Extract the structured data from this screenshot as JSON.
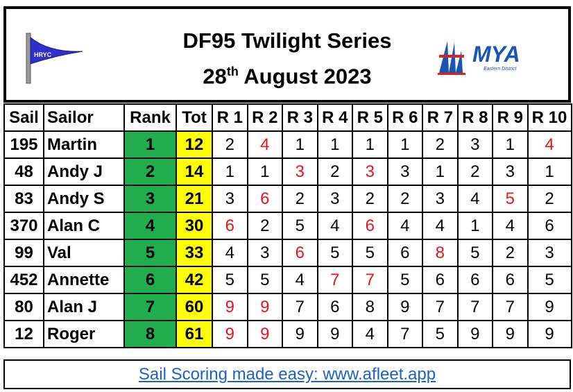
{
  "header": {
    "title_line1": "DF95 Twilight Series",
    "date_day": "28",
    "date_suffix": "th",
    "date_rest": " August 2023",
    "club_logo": "HRYC",
    "partner_logo": "MYA",
    "partner_sub": "Eastern District"
  },
  "columns": [
    "Sail",
    "Sailor",
    "Rank",
    "Tot",
    "R 1",
    "R 2",
    "R 3",
    "R 4",
    "R 5",
    "R 6",
    "R 7",
    "R 8",
    "R 9",
    "R 10"
  ],
  "rows": [
    {
      "sail": "195",
      "sailor": "Martin",
      "rank": "1",
      "tot": "12",
      "races": [
        "2",
        "4",
        "1",
        "1",
        "1",
        "1",
        "2",
        "3",
        "1",
        "4"
      ],
      "discards": [
        1,
        9
      ]
    },
    {
      "sail": "48",
      "sailor": "Andy J",
      "rank": "2",
      "tot": "14",
      "races": [
        "1",
        "1",
        "3",
        "2",
        "3",
        "3",
        "1",
        "2",
        "3",
        "1"
      ],
      "discards": [
        2,
        4
      ]
    },
    {
      "sail": "83",
      "sailor": "Andy S",
      "rank": "3",
      "tot": "21",
      "races": [
        "3",
        "6",
        "2",
        "3",
        "2",
        "2",
        "3",
        "4",
        "5",
        "2"
      ],
      "discards": [
        1,
        8
      ]
    },
    {
      "sail": "370",
      "sailor": "Alan C",
      "rank": "4",
      "tot": "30",
      "races": [
        "6",
        "2",
        "5",
        "4",
        "6",
        "4",
        "4",
        "1",
        "4",
        "6"
      ],
      "discards": [
        0,
        4
      ]
    },
    {
      "sail": "99",
      "sailor": "Val",
      "rank": "5",
      "tot": "33",
      "races": [
        "4",
        "3",
        "6",
        "5",
        "5",
        "6",
        "8",
        "5",
        "2",
        "3"
      ],
      "discards": [
        2,
        6
      ]
    },
    {
      "sail": "452",
      "sailor": "Annette",
      "rank": "6",
      "tot": "42",
      "races": [
        "5",
        "5",
        "4",
        "7",
        "7",
        "5",
        "6",
        "6",
        "6",
        "5"
      ],
      "discards": [
        3,
        4
      ]
    },
    {
      "sail": "80",
      "sailor": "Alan J",
      "rank": "7",
      "tot": "60",
      "races": [
        "9",
        "9",
        "7",
        "6",
        "8",
        "9",
        "7",
        "7",
        "7",
        "9"
      ],
      "discards": [
        0,
        1
      ]
    },
    {
      "sail": "12",
      "sailor": "Roger",
      "rank": "8",
      "tot": "61",
      "races": [
        "9",
        "9",
        "9",
        "9",
        "4",
        "7",
        "5",
        "9",
        "9",
        "9"
      ],
      "discards": [
        0,
        1
      ]
    }
  ],
  "colors": {
    "rank_bg": "#1fae4b",
    "tot_bg": "#ffff00",
    "discard": "#e8141c",
    "link": "#1f5fc7"
  },
  "footer": {
    "link_text": "Sail Scoring made easy: www.afleet.app"
  }
}
